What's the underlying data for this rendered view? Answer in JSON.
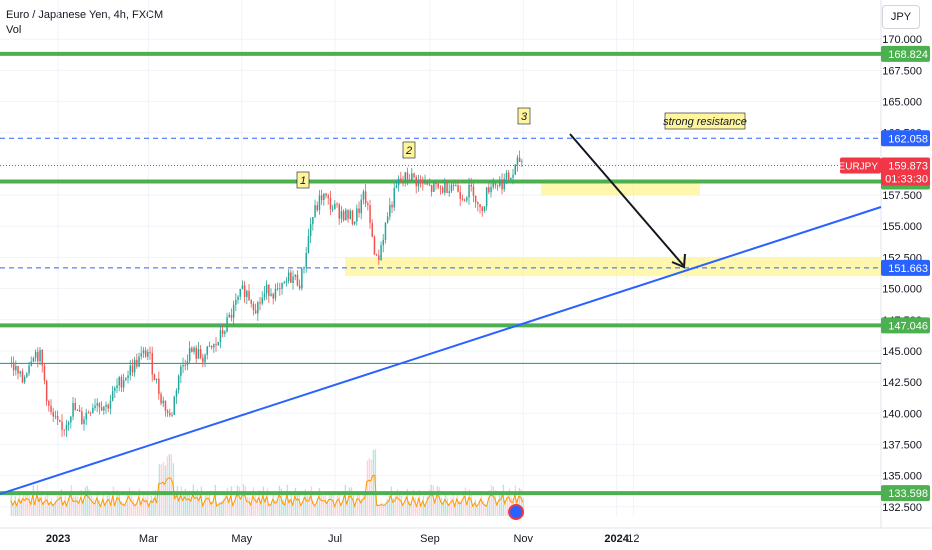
{
  "header": {
    "symbol_title": "Euro / Japanese Yen, 4h, FXCM",
    "volume_label": "Vol",
    "currency_button": "JPY"
  },
  "colors": {
    "candle_up": "#26a69a",
    "candle_down": "#ef5350",
    "support_green": "#4caf50",
    "trendline_blue": "#2962ff",
    "zone_yellow": "#fff176",
    "dashed_blue": "#2962ff",
    "price_red": "#f23645",
    "volume_line_orange": "#ff9800",
    "teal_line": "#089981"
  },
  "chart_data": {
    "type": "line",
    "title": "Euro / Japanese Yen, 4h, FXCM",
    "symbol": "EURJPY",
    "x_ticks": [
      "2023",
      "Mar",
      "May",
      "Jul",
      "Sep",
      "Nov",
      "2024",
      "12"
    ],
    "y_ticks": [
      132.5,
      135.0,
      137.5,
      140.0,
      142.5,
      145.0,
      147.5,
      150.0,
      152.5,
      155.0,
      157.5,
      160.0,
      162.5,
      165.0,
      167.5,
      170.0
    ],
    "ylim": [
      132.0,
      172.0
    ],
    "grid": true,
    "series": [
      {
        "values_x": [
          "2022-12-01",
          "2022-12-08",
          "2022-12-15",
          "2022-12-20",
          "2022-12-26",
          "2023-01-03",
          "2023-01-10",
          "2023-01-16",
          "2023-01-25",
          "2023-02-01",
          "2023-02-10",
          "2023-02-20",
          "2023-02-28",
          "2023-03-08",
          "2023-03-15",
          "2023-03-20",
          "2023-03-27",
          "2023-04-05",
          "2023-04-14",
          "2023-04-24",
          "2023-05-02",
          "2023-05-10",
          "2023-05-18",
          "2023-05-25",
          "2023-06-01",
          "2023-06-08",
          "2023-06-15",
          "2023-06-22",
          "2023-06-29",
          "2023-07-06",
          "2023-07-13",
          "2023-07-20",
          "2023-07-28",
          "2023-08-04",
          "2023-08-11",
          "2023-08-18",
          "2023-08-25",
          "2023-09-01",
          "2023-09-08",
          "2023-09-15",
          "2023-09-22",
          "2023-09-29",
          "2023-10-03",
          "2023-10-10",
          "2023-10-17",
          "2023-10-24",
          "2023-10-30",
          "2023-11-01"
        ],
        "values": [
          144.0,
          142.5,
          145.0,
          144.5,
          140.0,
          138.5,
          140.5,
          139.5,
          141.0,
          140.5,
          142.5,
          144.0,
          145.0,
          141.5,
          139.5,
          143.0,
          145.0,
          144.5,
          145.5,
          148.0,
          150.0,
          148.5,
          150.0,
          149.5,
          151.0,
          150.5,
          155.5,
          157.5,
          156.5,
          156.0,
          155.5,
          157.5,
          152.0,
          156.0,
          158.5,
          159.0,
          158.5,
          158.0,
          158.0,
          158.5,
          157.5,
          158.0,
          156.0,
          158.5,
          158.5,
          159.0,
          160.5,
          159.873
        ]
      }
    ],
    "horizontal_levels": [
      {
        "label": "168.824",
        "value": 168.824,
        "style": "solid-green"
      },
      {
        "label": "162.058",
        "value": 162.058,
        "style": "dashed-blue"
      },
      {
        "label": "158.586",
        "value": 158.586,
        "style": "solid-green"
      },
      {
        "label": "151.663",
        "value": 151.663,
        "style": "dashed-blue"
      },
      {
        "label": "147.046",
        "value": 147.046,
        "style": "solid-green"
      },
      {
        "label": "133.598",
        "value": 133.598,
        "style": "solid-green"
      }
    ],
    "teal_level": 144.0,
    "current_price": {
      "symbol": "EURJPY",
      "value": "159.873",
      "countdown": "01:33:30"
    },
    "annotations": [
      {
        "text": "1",
        "note": "wave label"
      },
      {
        "text": "2",
        "note": "wave label"
      },
      {
        "text": "3",
        "note": "wave label"
      },
      {
        "text": "strong resistance",
        "note": "resistance note"
      }
    ],
    "zones": [
      {
        "from": 157.5,
        "to": 158.5
      },
      {
        "from": 151.0,
        "to": 152.5
      }
    ]
  }
}
